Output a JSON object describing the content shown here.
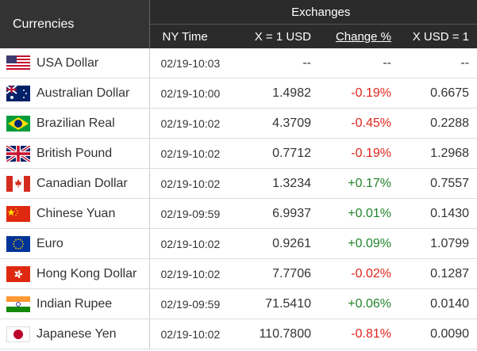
{
  "header": {
    "currencies": "Currencies",
    "exchanges": "Exchanges",
    "columns": [
      "NY Time",
      "X = 1 USD",
      "Change %",
      "X USD = 1"
    ]
  },
  "rows": [
    [
      "USA Dollar",
      "02/19-10:03",
      "--",
      "--",
      "--"
    ],
    [
      "Australian Dollar",
      "02/19-10:00",
      "1.4982",
      "-0.19%",
      "0.6675"
    ],
    [
      "Brazilian Real",
      "02/19-10:02",
      "4.3709",
      "-0.45%",
      "0.2288"
    ],
    [
      "British Pound",
      "02/19-10:02",
      "0.7712",
      "-0.19%",
      "1.2968"
    ],
    [
      "Canadian Dollar",
      "02/19-10:02",
      "1.3234",
      "+0.17%",
      "0.7557"
    ],
    [
      "Chinese Yuan",
      "02/19-09:59",
      "6.9937",
      "+0.01%",
      "0.1430"
    ],
    [
      "Euro",
      "02/19-10:02",
      "0.9261",
      "+0.09%",
      "1.0799"
    ],
    [
      "Hong Kong Dollar",
      "02/19-10:02",
      "7.7706",
      "-0.02%",
      "0.1287"
    ],
    [
      "Indian Rupee",
      "02/19-09:59",
      "71.5410",
      "+0.06%",
      "0.0140"
    ],
    [
      "Japanese Yen",
      "02/19-10:02",
      "110.7800",
      "-0.81%",
      "0.0090"
    ]
  ]
}
